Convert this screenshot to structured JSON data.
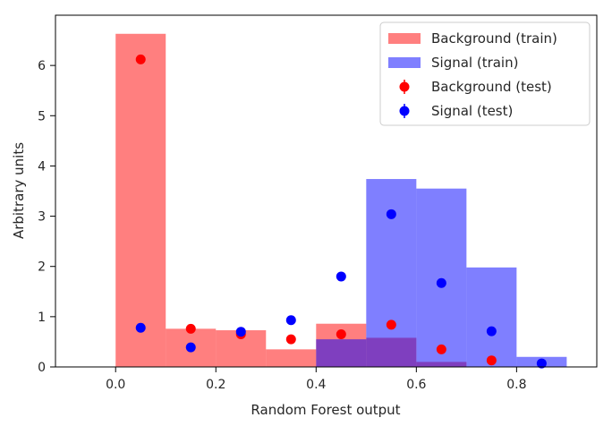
{
  "chart_data": {
    "type": "bar",
    "xlabel": "Random Forest output",
    "ylabel": "Arbitrary units",
    "xlim": [
      -0.12,
      0.96
    ],
    "ylim": [
      0,
      7.0
    ],
    "xticks": [
      0.0,
      0.2,
      0.4,
      0.6,
      0.8
    ],
    "xtick_labels": [
      "0.0",
      "0.2",
      "0.4",
      "0.6",
      "0.8"
    ],
    "yticks": [
      0,
      1,
      2,
      3,
      4,
      5,
      6
    ],
    "ytick_labels": [
      "0",
      "1",
      "2",
      "3",
      "4",
      "5",
      "6"
    ],
    "bin_edges": [
      0.0,
      0.1,
      0.2,
      0.3,
      0.4,
      0.5,
      0.6,
      0.7,
      0.8,
      0.9
    ],
    "bin_centers": [
      0.05,
      0.15,
      0.25,
      0.35,
      0.45,
      0.55,
      0.65,
      0.75,
      0.85
    ],
    "grid": false,
    "legend_position": "top-right",
    "series": [
      {
        "name": "Background (train)",
        "kind": "hist",
        "color": "#ff0000",
        "alpha": 0.5,
        "values": [
          6.63,
          0.76,
          0.73,
          0.35,
          0.86,
          0.58,
          0.1,
          0.0,
          0.0
        ]
      },
      {
        "name": "Signal (train)",
        "kind": "hist",
        "color": "#0000ff",
        "alpha": 0.5,
        "values": [
          0.0,
          0.0,
          0.0,
          0.0,
          0.55,
          3.74,
          3.55,
          1.98,
          0.2
        ]
      },
      {
        "name": "Background (test)",
        "kind": "points",
        "color": "#ff0000",
        "values": [
          6.12,
          0.76,
          0.65,
          0.55,
          0.65,
          0.84,
          0.35,
          0.13,
          null
        ]
      },
      {
        "name": "Signal (test)",
        "kind": "points",
        "color": "#0000ff",
        "values": [
          0.78,
          0.39,
          0.7,
          0.93,
          1.8,
          3.04,
          1.67,
          0.71,
          0.07
        ]
      }
    ]
  }
}
